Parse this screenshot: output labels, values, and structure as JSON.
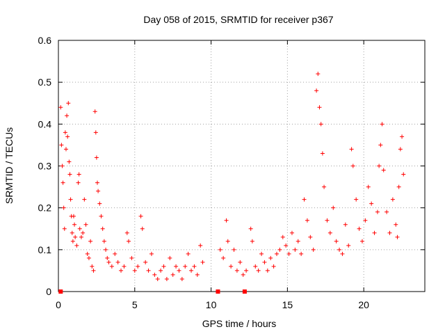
{
  "chart_data": {
    "type": "scatter",
    "title": "Day 058 of 2015, SRMTID for receiver p367",
    "xlabel": "GPS time / hours",
    "ylabel": "SRMTID / TECUs",
    "xlim": [
      0,
      24
    ],
    "ylim": [
      0,
      0.6
    ],
    "xticks": [
      0,
      5,
      10,
      15,
      20
    ],
    "yticks": [
      0,
      0.1,
      0.2,
      0.3,
      0.4,
      0.5,
      0.6
    ],
    "xtick_labels": [
      "0",
      "5",
      "10",
      "15",
      "20"
    ],
    "ytick_labels": [
      "0",
      "0.1",
      "0.2",
      "0.3",
      "0.4",
      "0.5",
      "0.6"
    ],
    "grid": true,
    "marker": "plus",
    "color": "#ff0000",
    "zero_markers_x": [
      0.15,
      10.45,
      12.2
    ],
    "series": [
      {
        "name": "SRMTID",
        "points": [
          [
            0.15,
            0.44
          ],
          [
            0.2,
            0.35
          ],
          [
            0.25,
            0.3
          ],
          [
            0.3,
            0.26
          ],
          [
            0.35,
            0.2
          ],
          [
            0.4,
            0.15
          ],
          [
            0.45,
            0.38
          ],
          [
            0.5,
            0.34
          ],
          [
            0.55,
            0.42
          ],
          [
            0.6,
            0.37
          ],
          [
            0.65,
            0.45
          ],
          [
            0.7,
            0.31
          ],
          [
            0.75,
            0.28
          ],
          [
            0.8,
            0.22
          ],
          [
            0.85,
            0.18
          ],
          [
            0.9,
            0.14
          ],
          [
            0.95,
            0.12
          ],
          [
            1.0,
            0.18
          ],
          [
            1.05,
            0.16
          ],
          [
            1.1,
            0.13
          ],
          [
            1.2,
            0.11
          ],
          [
            1.3,
            0.26
          ],
          [
            1.35,
            0.28
          ],
          [
            1.4,
            0.15
          ],
          [
            1.5,
            0.13
          ],
          [
            1.6,
            0.14
          ],
          [
            1.7,
            0.22
          ],
          [
            1.8,
            0.16
          ],
          [
            1.9,
            0.09
          ],
          [
            2.0,
            0.08
          ],
          [
            2.1,
            0.12
          ],
          [
            2.2,
            0.06
          ],
          [
            2.3,
            0.05
          ],
          [
            2.4,
            0.43
          ],
          [
            2.45,
            0.38
          ],
          [
            2.5,
            0.32
          ],
          [
            2.55,
            0.26
          ],
          [
            2.6,
            0.24
          ],
          [
            2.7,
            0.21
          ],
          [
            2.8,
            0.18
          ],
          [
            2.9,
            0.15
          ],
          [
            3.0,
            0.12
          ],
          [
            3.1,
            0.1
          ],
          [
            3.2,
            0.08
          ],
          [
            3.3,
            0.07
          ],
          [
            3.5,
            0.06
          ],
          [
            3.7,
            0.09
          ],
          [
            3.9,
            0.07
          ],
          [
            4.1,
            0.05
          ],
          [
            4.3,
            0.06
          ],
          [
            4.5,
            0.14
          ],
          [
            4.6,
            0.12
          ],
          [
            4.8,
            0.08
          ],
          [
            5.0,
            0.05
          ],
          [
            5.2,
            0.06
          ],
          [
            5.4,
            0.18
          ],
          [
            5.5,
            0.15
          ],
          [
            5.7,
            0.07
          ],
          [
            5.9,
            0.05
          ],
          [
            6.1,
            0.09
          ],
          [
            6.3,
            0.04
          ],
          [
            6.5,
            0.03
          ],
          [
            6.7,
            0.05
          ],
          [
            6.9,
            0.06
          ],
          [
            7.1,
            0.03
          ],
          [
            7.3,
            0.08
          ],
          [
            7.5,
            0.04
          ],
          [
            7.7,
            0.06
          ],
          [
            7.9,
            0.05
          ],
          [
            8.1,
            0.03
          ],
          [
            8.3,
            0.06
          ],
          [
            8.5,
            0.09
          ],
          [
            8.7,
            0.05
          ],
          [
            8.9,
            0.06
          ],
          [
            9.1,
            0.04
          ],
          [
            9.3,
            0.11
          ],
          [
            9.45,
            0.07
          ],
          [
            10.6,
            0.1
          ],
          [
            10.8,
            0.08
          ],
          [
            11.0,
            0.17
          ],
          [
            11.1,
            0.12
          ],
          [
            11.3,
            0.06
          ],
          [
            11.5,
            0.1
          ],
          [
            11.7,
            0.05
          ],
          [
            11.9,
            0.07
          ],
          [
            12.1,
            0.04
          ],
          [
            12.3,
            0.05
          ],
          [
            12.6,
            0.15
          ],
          [
            12.7,
            0.12
          ],
          [
            12.9,
            0.06
          ],
          [
            13.1,
            0.05
          ],
          [
            13.3,
            0.09
          ],
          [
            13.5,
            0.07
          ],
          [
            13.7,
            0.05
          ],
          [
            13.9,
            0.08
          ],
          [
            14.1,
            0.06
          ],
          [
            14.3,
            0.09
          ],
          [
            14.5,
            0.1
          ],
          [
            14.7,
            0.13
          ],
          [
            14.9,
            0.11
          ],
          [
            15.1,
            0.09
          ],
          [
            15.3,
            0.14
          ],
          [
            15.5,
            0.1
          ],
          [
            15.7,
            0.12
          ],
          [
            15.9,
            0.09
          ],
          [
            16.1,
            0.22
          ],
          [
            16.3,
            0.17
          ],
          [
            16.5,
            0.13
          ],
          [
            16.7,
            0.1
          ],
          [
            16.9,
            0.48
          ],
          [
            17.0,
            0.52
          ],
          [
            17.1,
            0.44
          ],
          [
            17.2,
            0.4
          ],
          [
            17.3,
            0.33
          ],
          [
            17.4,
            0.25
          ],
          [
            17.6,
            0.17
          ],
          [
            17.8,
            0.14
          ],
          [
            18.0,
            0.2
          ],
          [
            18.2,
            0.12
          ],
          [
            18.4,
            0.1
          ],
          [
            18.6,
            0.09
          ],
          [
            18.8,
            0.16
          ],
          [
            19.0,
            0.11
          ],
          [
            19.2,
            0.34
          ],
          [
            19.3,
            0.3
          ],
          [
            19.5,
            0.22
          ],
          [
            19.7,
            0.15
          ],
          [
            19.9,
            0.12
          ],
          [
            20.1,
            0.17
          ],
          [
            20.3,
            0.25
          ],
          [
            20.5,
            0.21
          ],
          [
            20.7,
            0.14
          ],
          [
            20.9,
            0.19
          ],
          [
            21.0,
            0.3
          ],
          [
            21.1,
            0.35
          ],
          [
            21.2,
            0.4
          ],
          [
            21.3,
            0.29
          ],
          [
            21.5,
            0.19
          ],
          [
            21.7,
            0.14
          ],
          [
            21.9,
            0.22
          ],
          [
            22.1,
            0.16
          ],
          [
            22.2,
            0.13
          ],
          [
            22.3,
            0.25
          ],
          [
            22.4,
            0.34
          ],
          [
            22.5,
            0.37
          ],
          [
            22.6,
            0.28
          ]
        ]
      }
    ]
  }
}
